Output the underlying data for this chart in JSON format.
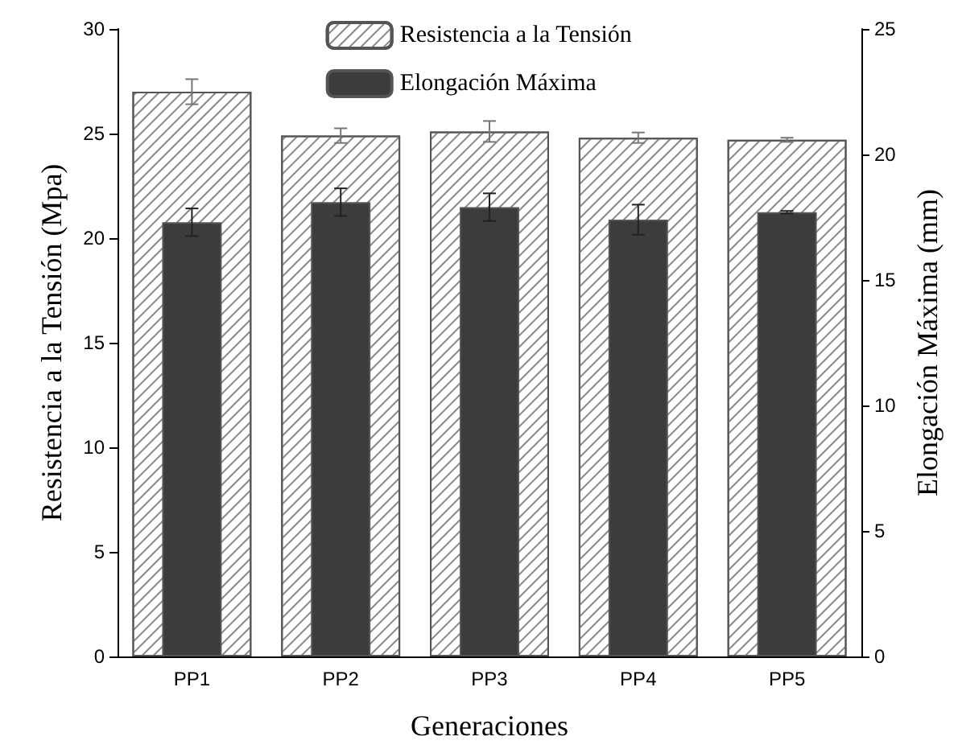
{
  "chart_data": {
    "type": "bar",
    "xlabel": "Generaciones",
    "ylabel": "Resistencia a la Tensión (Mpa)",
    "y2label": "Elongación Máxima (mm)",
    "categories": [
      "PP1",
      "PP2",
      "PP3",
      "PP4",
      "PP5"
    ],
    "series": [
      {
        "name": "Resistencia a la Tensión",
        "color": "#ffffff",
        "values": [
          27.0,
          24.9,
          25.1,
          24.8,
          24.7
        ],
        "errors": [
          0.6,
          0.35,
          0.5,
          0.25,
          0.1
        ]
      },
      {
        "name": "Elongación Máxima",
        "color": "#3c3c3c",
        "axis": "y2",
        "values": [
          17.3,
          18.1,
          17.9,
          17.4,
          17.7
        ],
        "errors": [
          0.55,
          0.55,
          0.55,
          0.6,
          0.05
        ]
      }
    ],
    "ylim": [
      0,
      30
    ],
    "yticks": [
      0,
      5,
      10,
      15,
      20,
      25,
      30
    ],
    "y2lim": [
      0,
      25
    ],
    "y2ticks": [
      0,
      5,
      10,
      15,
      20,
      25
    ],
    "grid": false,
    "legend": "top"
  }
}
